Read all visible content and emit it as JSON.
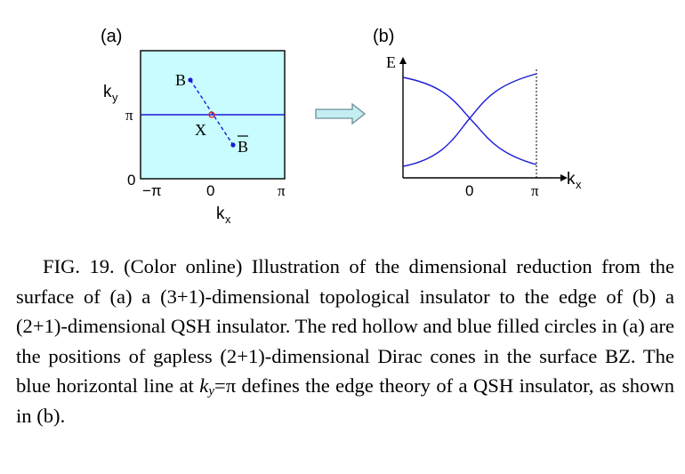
{
  "panel_a": {
    "label": "(a)",
    "axis_y_label": "k",
    "axis_y_sub": "y",
    "axis_x_label": "k",
    "axis_x_sub": "x",
    "y_tick_pi": "π",
    "y_tick_zero": "0",
    "x_tick_neg_pi": "−π",
    "x_tick_zero": "0",
    "x_tick_pi": "π",
    "point_b": "B",
    "point_x": "X",
    "point_b_bar": "B"
  },
  "panel_b": {
    "label": "(b)",
    "axis_e_label": "E",
    "axis_kx_label": "k",
    "axis_kx_sub": "x",
    "x_tick_zero": "0",
    "x_tick_pi": "π"
  },
  "colors": {
    "bz_fill": "#c8fcfe",
    "line_blue": "#1a1ad6",
    "point_red": "#e0202a",
    "arrow_fill": "#c4eef2",
    "arrow_stroke": "#6f8f96"
  },
  "caption": {
    "fig_label": "FIG. 19.",
    "text_1": " (Color online) Illustration of the dimensional reduction from the surface of (a) a (3+1)-dimensional topological insulator to the edge of (b) a (2+1)-dimensional QSH insulator. The red hollow and blue filled circles in (a) are the positions of gapless (2+1)-dimensional Dirac cones in the surface BZ. The blue horizontal line at ",
    "k_symbol": "k",
    "k_sub": "y",
    "equals_pi": "=π",
    "text_2": " defines the edge theory of a QSH insulator, as shown in (b)."
  }
}
